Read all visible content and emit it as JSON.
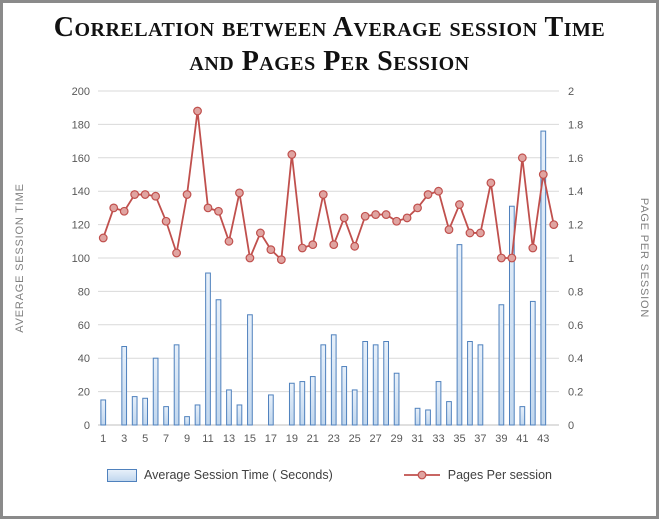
{
  "colors": {
    "bar_fill_top": "#e7f0fa",
    "bar_fill_bottom": "#c1d7ee",
    "bar_stroke": "#4f81bd",
    "line": "#c0504d",
    "marker_fill": "#e0a4a1",
    "grid": "#d9d9d9",
    "axis_line": "#bfbfbf",
    "axis_text": "#595959",
    "axis_title": "#7f7f7f",
    "title_text": "#111111"
  },
  "chart_data": {
    "type": "bar",
    "combo": "bar + line, dual axis",
    "title": "Correlation between Average session Time and Pages Per Session",
    "x": [
      1,
      2,
      3,
      4,
      5,
      6,
      7,
      8,
      9,
      10,
      11,
      12,
      13,
      14,
      15,
      16,
      17,
      18,
      19,
      20,
      21,
      22,
      23,
      24,
      25,
      26,
      27,
      28,
      29,
      30,
      31,
      32,
      33,
      34,
      35,
      36,
      37,
      38,
      39,
      40,
      41,
      42,
      43,
      44
    ],
    "x_tick_labels": [
      1,
      3,
      5,
      7,
      9,
      11,
      13,
      15,
      17,
      19,
      21,
      23,
      25,
      27,
      29,
      31,
      33,
      35,
      37,
      39,
      41,
      43
    ],
    "series": [
      {
        "name": "Average Session Time ( Seconds)",
        "type": "bar",
        "axis": "left",
        "values": [
          15,
          0,
          47,
          17,
          16,
          40,
          11,
          48,
          5,
          12,
          91,
          75,
          21,
          12,
          66,
          0,
          18,
          0,
          25,
          26,
          29,
          48,
          54,
          35,
          21,
          50,
          48,
          50,
          31,
          0,
          10,
          9,
          26,
          14,
          108,
          50,
          48,
          0,
          72,
          131,
          11,
          74,
          176,
          0
        ]
      },
      {
        "name": "Pages Per session",
        "type": "line",
        "axis": "right",
        "values": [
          1.12,
          1.3,
          1.28,
          1.38,
          1.38,
          1.37,
          1.22,
          1.03,
          1.38,
          1.88,
          1.3,
          1.28,
          1.1,
          1.39,
          1,
          1.15,
          1.05,
          0.99,
          1.62,
          1.06,
          1.08,
          1.38,
          1.08,
          1.24,
          1.07,
          1.25,
          1.26,
          1.26,
          1.22,
          1.24,
          1.3,
          1.38,
          1.4,
          1.17,
          1.32,
          1.15,
          1.15,
          1.45,
          1,
          1,
          1.6,
          1.06,
          1.5,
          1.2
        ]
      }
    ],
    "left_axis": {
      "label": "AVERAGE SESSION TIME",
      "min": 0,
      "max": 200,
      "step": 20,
      "ticks": [
        0,
        20,
        40,
        60,
        80,
        100,
        120,
        140,
        160,
        180,
        200
      ]
    },
    "right_axis": {
      "label": "PAGE PER SESSION",
      "min": 0,
      "max": 2,
      "step": 0.2,
      "ticks": [
        0,
        0.2,
        0.4,
        0.6,
        0.8,
        1,
        1.2,
        1.4,
        1.6,
        1.8,
        2
      ]
    },
    "grid": true,
    "legend_position": "bottom"
  }
}
